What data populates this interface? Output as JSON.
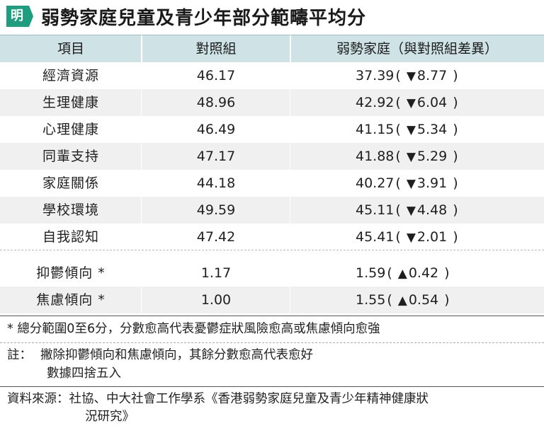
{
  "header": {
    "logo_char": "明",
    "title": "弱勢家庭兒童及青少年部分範疇平均分"
  },
  "colors": {
    "logo_green": "#1f9e7f",
    "header_bg": "#cfe3e6",
    "row_shade": "#f0f0f0"
  },
  "table": {
    "columns": [
      "項目",
      "對照組",
      "弱勢家庭（與對照組差異）"
    ],
    "rows": [
      {
        "item": "經濟資源",
        "control": "46.17",
        "disadvantaged": "37.39",
        "arrow": "▼",
        "diff": "8.77"
      },
      {
        "item": "生理健康",
        "control": "48.96",
        "disadvantaged": "42.92",
        "arrow": "▼",
        "diff": "6.04"
      },
      {
        "item": "心理健康",
        "control": "46.49",
        "disadvantaged": "41.15",
        "arrow": "▼",
        "diff": "5.34"
      },
      {
        "item": "同輩支持",
        "control": "47.17",
        "disadvantaged": "41.88",
        "arrow": "▼",
        "diff": "5.29"
      },
      {
        "item": "家庭關係",
        "control": "44.18",
        "disadvantaged": "40.27",
        "arrow": "▼",
        "diff": "3.91"
      },
      {
        "item": "學校環境",
        "control": "49.59",
        "disadvantaged": "45.11",
        "arrow": "▼",
        "diff": "4.48"
      },
      {
        "item": "自我認知",
        "control": "47.42",
        "disadvantaged": "45.41",
        "arrow": "▼",
        "diff": "2.01"
      }
    ],
    "extra_rows": [
      {
        "item": "抑鬱傾向 *",
        "control": "1.17",
        "disadvantaged": "1.59",
        "arrow": "▲",
        "diff": "0.42"
      },
      {
        "item": "焦慮傾向 *",
        "control": "1.00",
        "disadvantaged": "1.55",
        "arrow": "▲",
        "diff": "0.54"
      }
    ]
  },
  "chart_data": {
    "type": "table",
    "title": "弱勢家庭兒童及青少年部分範疇平均分",
    "columns": [
      "項目",
      "對照組",
      "弱勢家庭（與對照組差異）"
    ],
    "categories": [
      "經濟資源",
      "生理健康",
      "心理健康",
      "同輩支持",
      "家庭關係",
      "學校環境",
      "自我認知",
      "抑鬱傾向 *",
      "焦慮傾向 *"
    ],
    "series": [
      {
        "name": "對照組",
        "values": [
          46.17,
          48.96,
          46.49,
          47.17,
          44.18,
          49.59,
          47.42,
          1.17,
          1.0
        ]
      },
      {
        "name": "弱勢家庭",
        "values": [
          37.39,
          42.92,
          41.15,
          41.88,
          40.27,
          45.11,
          45.41,
          1.59,
          1.55
        ]
      }
    ],
    "differences": [
      -8.77,
      -6.04,
      -5.34,
      -5.29,
      -3.91,
      -4.48,
      -2.01,
      0.42,
      0.54
    ]
  },
  "notes": {
    "footnote": "* 總分範圍0至6分，分數愈高代表憂鬱症狀風險愈高或焦慮傾向愈強",
    "note_label": "註：",
    "note_line1": "撇除抑鬱傾向和焦慮傾向，其餘分數愈高代表愈好",
    "note_line2": "數據四捨五入",
    "source_line1": "資料來源：社協、中大社會工作學系《香港弱勢家庭兒童及青少年精神健康狀",
    "source_line2": "況研究》"
  }
}
